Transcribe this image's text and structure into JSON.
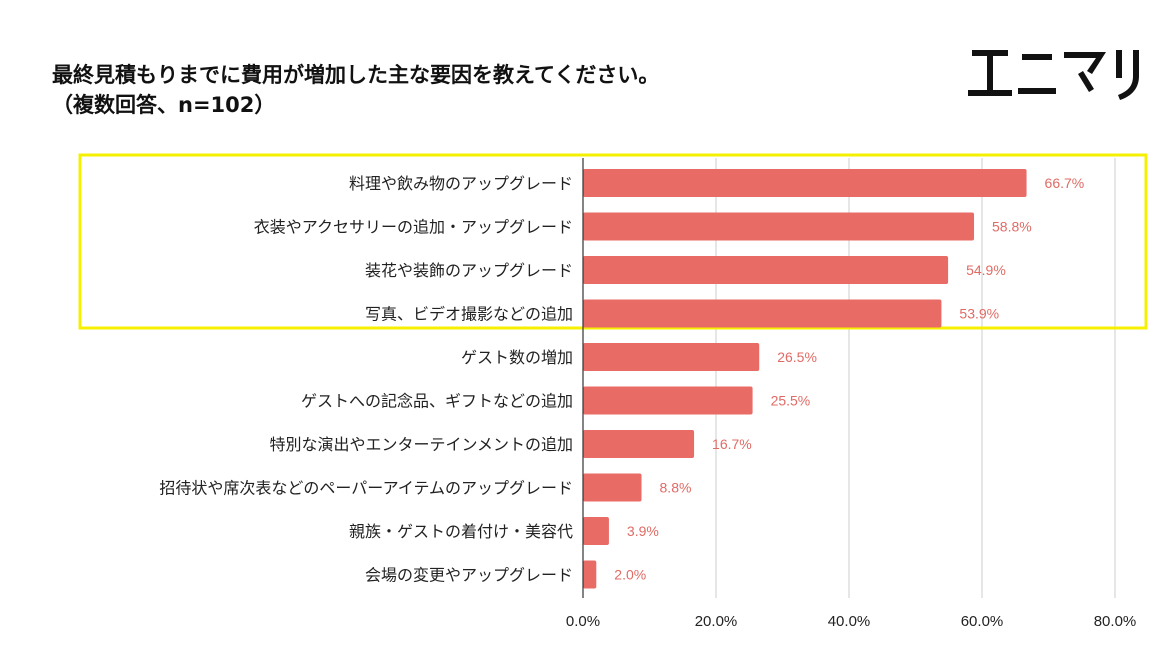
{
  "title_lines": [
    "最終見積もりまでに費用が増加した主な要因を教えてください。",
    "（複数回答、n=102）"
  ],
  "logo": {
    "name": "エニマリ",
    "color": "#111111"
  },
  "colors": {
    "bar": "#e86b66",
    "value_label": "#e06b65",
    "highlight": "#f5f000",
    "grid": "#cccccc"
  },
  "chart_data": {
    "type": "bar",
    "orientation": "horizontal",
    "title": "最終見積もりまでに費用が増加した主な要因を教えてください。（複数回答、n=102）",
    "categories": [
      "料理や飲み物のアップグレード",
      "衣装やアクセサリーの追加・アップグレード",
      "装花や装飾のアップグレード",
      "写真、ビデオ撮影などの追加",
      "ゲスト数の増加",
      "ゲストへの記念品、ギフトなどの追加",
      "特別な演出やエンターテインメントの追加",
      "招待状や席次表などのペーパーアイテムのアップグレード",
      "親族・ゲストの着付け・美容代",
      "会場の変更やアップグレード"
    ],
    "values": [
      66.7,
      58.8,
      54.9,
      53.9,
      26.5,
      25.5,
      16.7,
      8.8,
      3.9,
      2.0
    ],
    "value_labels": [
      "66.7%",
      "58.8%",
      "54.9%",
      "53.9%",
      "26.5%",
      "25.5%",
      "16.7%",
      "8.8%",
      "3.9%",
      "2.0%"
    ],
    "xlim": [
      0,
      80
    ],
    "xticks": [
      0,
      20,
      40,
      60,
      80
    ],
    "xtick_labels": [
      "0.0%",
      "20.0%",
      "40.0%",
      "60.0%",
      "80.0%"
    ],
    "xlabel": "",
    "ylabel": "",
    "grid": true,
    "highlight_top_n": 4
  }
}
